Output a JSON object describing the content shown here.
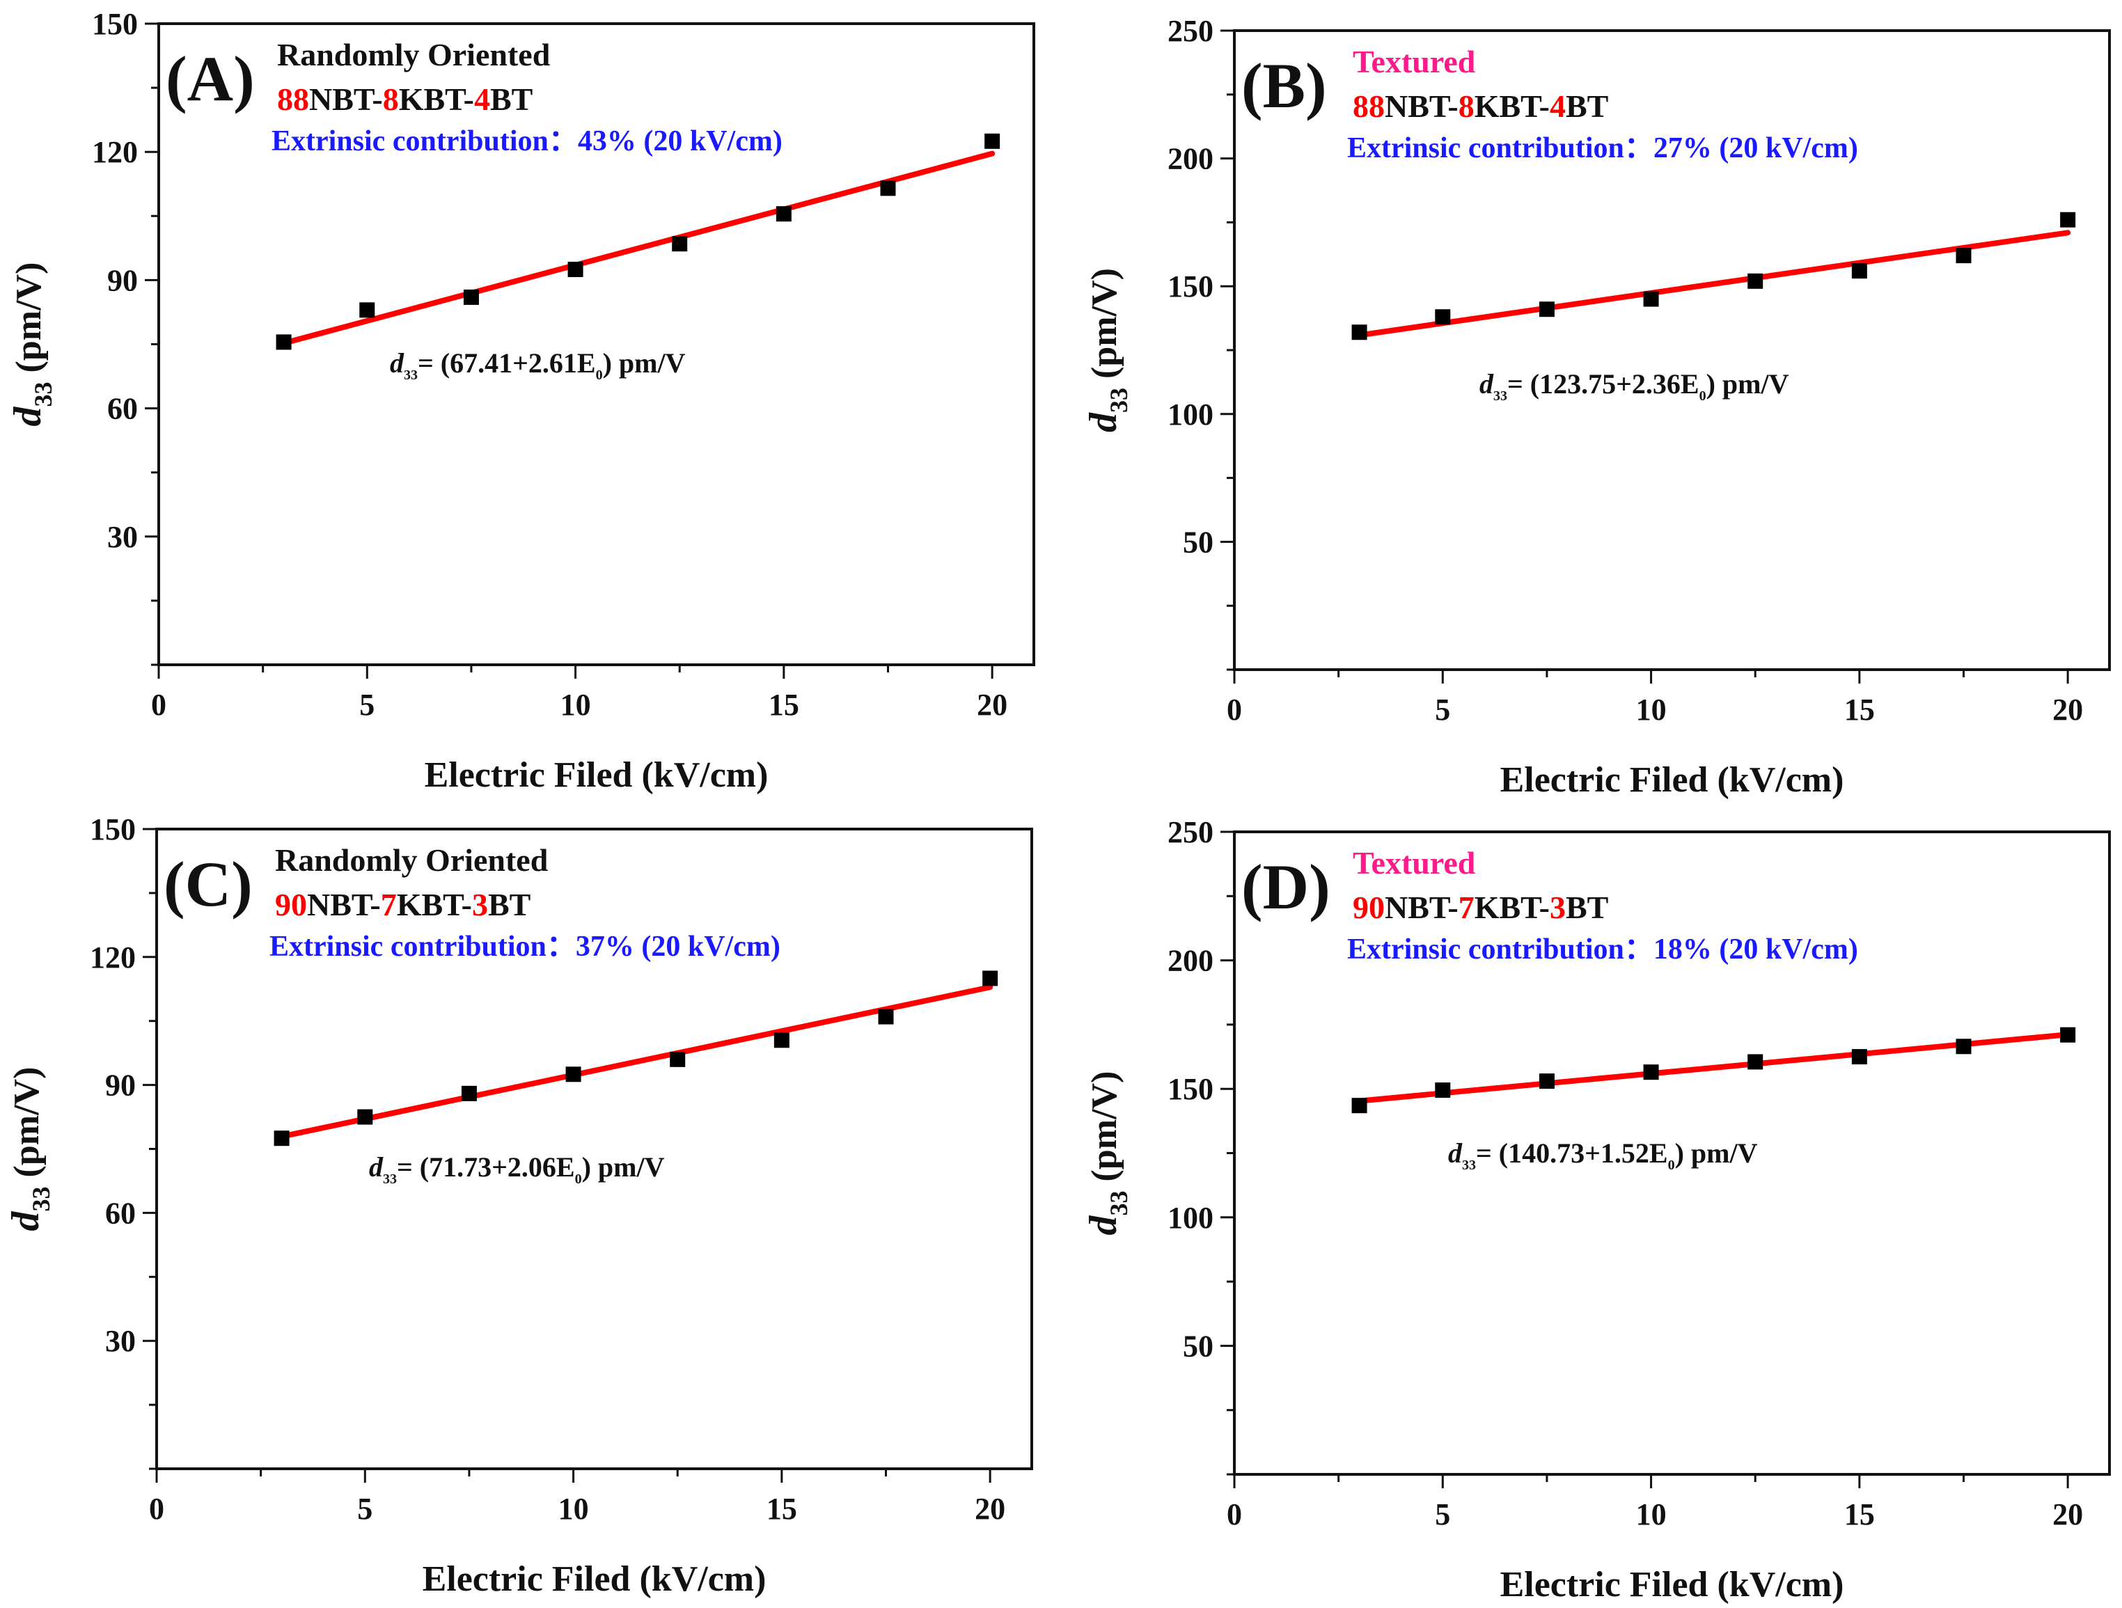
{
  "chart_data": [
    {
      "type": "scatter",
      "panel": "(A)",
      "title": "Randomly Oriented",
      "composition": [
        {
          "text": "88",
          "color": "#ff0000"
        },
        {
          "text": "NBT-",
          "color": "#111111"
        },
        {
          "text": "8",
          "color": "#ff0000"
        },
        {
          "text": "KBT-",
          "color": "#111111"
        },
        {
          "text": "4",
          "color": "#ff0000"
        },
        {
          "text": "BT",
          "color": "#111111"
        }
      ],
      "contribution": "Extrinsic contribution：43% (20 kV/cm)",
      "equation_prefix": "d",
      "equation_sub": "33",
      "equation_mid": "= (67.41+2.61E",
      "equation_sub2": "0",
      "equation_suffix": ") pm/V",
      "xlabel": "Electric Filed (kV/cm)",
      "ylabel_main": "d",
      "ylabel_sub": "33",
      "ylabel_rest": " (pm/V)",
      "xlim": [
        0,
        21
      ],
      "ylim": [
        0,
        150
      ],
      "xticks": [
        0,
        5,
        10,
        15,
        20
      ],
      "yticks": [
        30,
        60,
        90,
        120,
        150
      ],
      "x": [
        3,
        5,
        7.5,
        10,
        12.5,
        15,
        17.5,
        20
      ],
      "y": [
        75.5,
        83,
        86,
        92.5,
        98.5,
        105.5,
        111.5,
        122.5
      ],
      "fit": {
        "intercept": 67.41,
        "slope": 2.61,
        "x_range": [
          3,
          20
        ]
      }
    },
    {
      "type": "scatter",
      "panel": "(B)",
      "title": "Textured",
      "composition": [
        {
          "text": "88",
          "color": "#ff0000"
        },
        {
          "text": "NBT-",
          "color": "#111111"
        },
        {
          "text": "8",
          "color": "#ff0000"
        },
        {
          "text": "KBT-",
          "color": "#111111"
        },
        {
          "text": "4",
          "color": "#ff0000"
        },
        {
          "text": "BT",
          "color": "#111111"
        }
      ],
      "contribution": "Extrinsic contribution：27% (20 kV/cm)",
      "equation_prefix": "d",
      "equation_sub": "33",
      "equation_mid": "= (123.75+2.36E",
      "equation_sub2": "0",
      "equation_suffix": ") pm/V",
      "xlabel": "Electric Filed (kV/cm)",
      "ylabel_main": "d",
      "ylabel_sub": "33",
      "ylabel_rest": " (pm/V)",
      "xlim": [
        0,
        21
      ],
      "ylim": [
        0,
        250
      ],
      "xticks": [
        0,
        5,
        10,
        15,
        20
      ],
      "yticks": [
        50,
        100,
        150,
        200,
        250
      ],
      "x": [
        3,
        5,
        7.5,
        10,
        12.5,
        15,
        17.5,
        20
      ],
      "y": [
        132,
        138,
        141,
        145,
        152,
        156,
        162,
        176
      ],
      "fit": {
        "intercept": 123.75,
        "slope": 2.36,
        "x_range": [
          3,
          20
        ]
      }
    },
    {
      "type": "scatter",
      "panel": "(C)",
      "title": "Randomly Oriented",
      "composition": [
        {
          "text": "90",
          "color": "#ff0000"
        },
        {
          "text": "NBT-",
          "color": "#111111"
        },
        {
          "text": "7",
          "color": "#ff0000"
        },
        {
          "text": "KBT-",
          "color": "#111111"
        },
        {
          "text": "3",
          "color": "#ff0000"
        },
        {
          "text": "BT",
          "color": "#111111"
        }
      ],
      "contribution": "Extrinsic contribution：37%  (20 kV/cm)",
      "equation_prefix": "d",
      "equation_sub": "33",
      "equation_mid": "= (71.73+2.06E",
      "equation_sub2": "0",
      "equation_suffix": ") pm/V",
      "xlabel": "Electric Filed (kV/cm)",
      "ylabel_main": "d",
      "ylabel_sub": "33",
      "ylabel_rest": " (pm/V)",
      "xlim": [
        0,
        21
      ],
      "ylim": [
        0,
        150
      ],
      "xticks": [
        0,
        5,
        10,
        15,
        20
      ],
      "yticks": [
        30,
        60,
        90,
        120,
        150
      ],
      "x": [
        3,
        5,
        7.5,
        10,
        12.5,
        15,
        17.5,
        20
      ],
      "y": [
        77.5,
        82.5,
        88,
        92.5,
        96,
        100.5,
        106,
        115
      ],
      "fit": {
        "intercept": 71.73,
        "slope": 2.06,
        "x_range": [
          3,
          20
        ]
      }
    },
    {
      "type": "scatter",
      "panel": "(D)",
      "title": "Textured",
      "composition": [
        {
          "text": "90",
          "color": "#ff0000"
        },
        {
          "text": "NBT-",
          "color": "#111111"
        },
        {
          "text": "7",
          "color": "#ff0000"
        },
        {
          "text": "KBT-",
          "color": "#111111"
        },
        {
          "text": "3",
          "color": "#ff0000"
        },
        {
          "text": "BT",
          "color": "#111111"
        }
      ],
      "contribution": "Extrinsic contribution：18% (20 kV/cm)",
      "equation_prefix": "d",
      "equation_sub": "33",
      "equation_mid": "= (140.73+1.52E",
      "equation_sub2": "0",
      "equation_suffix": ") pm/V",
      "xlabel": "Electric Filed (kV/cm)",
      "ylabel_main": "d",
      "ylabel_sub": "33",
      "ylabel_rest": " (pm/V)",
      "xlim": [
        0,
        21
      ],
      "ylim": [
        0,
        250
      ],
      "xticks": [
        0,
        5,
        10,
        15,
        20
      ],
      "yticks": [
        50,
        100,
        150,
        200,
        250
      ],
      "x": [
        3,
        5,
        7.5,
        10,
        12.5,
        15,
        17.5,
        20
      ],
      "y": [
        143.5,
        149.5,
        153,
        156.5,
        160.5,
        162.5,
        166.5,
        171
      ],
      "fit": {
        "intercept": 140.73,
        "slope": 1.52,
        "x_range": [
          3,
          20
        ]
      }
    }
  ],
  "colors": {
    "axis": "#111111",
    "marker": "#000000",
    "fit_line": "#ff0000",
    "title_random": "#111111",
    "title_textured": "#ff1a8c",
    "contribution": "#1a1aff"
  }
}
